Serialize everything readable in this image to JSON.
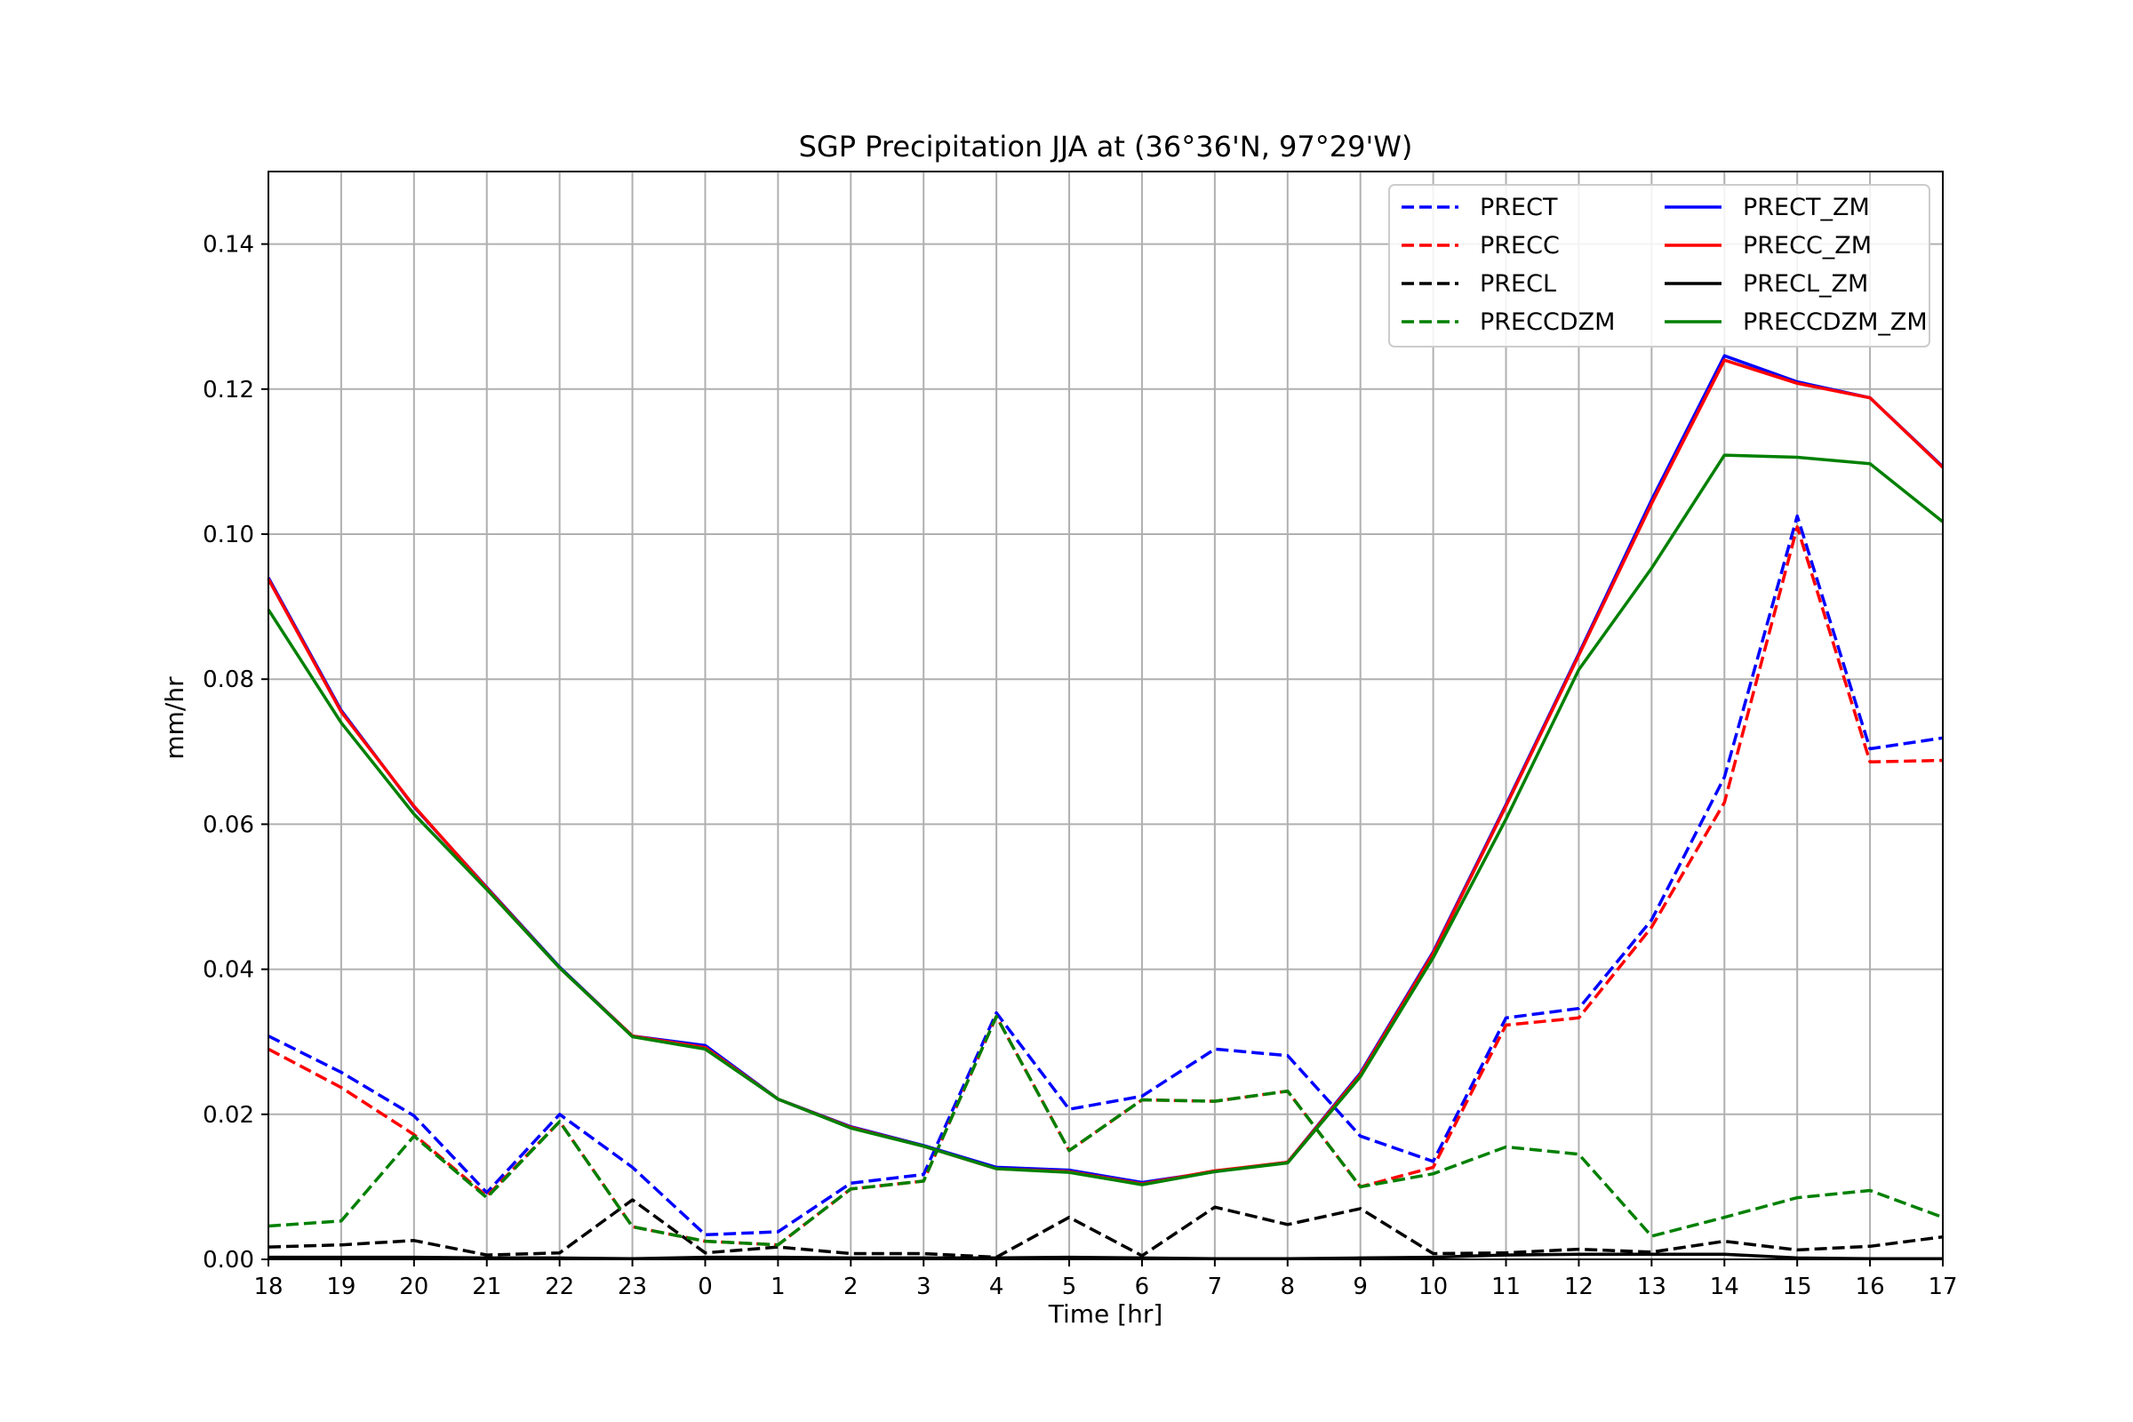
{
  "chart_data": {
    "type": "line",
    "title": "SGP Precipitation JJA at (36°36'N, 97°29'W)",
    "xlabel": "Time [hr]",
    "ylabel": "mm/hr",
    "categories": [
      "18",
      "19",
      "20",
      "21",
      "22",
      "23",
      "0",
      "1",
      "2",
      "3",
      "4",
      "5",
      "6",
      "7",
      "8",
      "9",
      "10",
      "11",
      "12",
      "13",
      "14",
      "15",
      "16",
      "17"
    ],
    "ylim": [
      0,
      0.15
    ],
    "yticks": [
      "0.00",
      "0.02",
      "0.04",
      "0.06",
      "0.08",
      "0.10",
      "0.12",
      "0.14"
    ],
    "grid": true,
    "legend_position": "top-right",
    "series": [
      {
        "name": "PRECT",
        "color": "#0000ff",
        "style": "dashed",
        "values": [
          0.0308,
          0.0258,
          0.0198,
          0.0092,
          0.02,
          0.0127,
          0.0034,
          0.0038,
          0.0105,
          0.0117,
          0.034,
          0.0207,
          0.0225,
          0.029,
          0.0281,
          0.017,
          0.0135,
          0.0333,
          0.0346,
          0.0468,
          0.0665,
          0.1025,
          0.0704,
          0.0719
        ]
      },
      {
        "name": "PRECC",
        "color": "#ff0000",
        "style": "dashed",
        "values": [
          0.029,
          0.0237,
          0.0172,
          0.0087,
          0.019,
          0.0045,
          0.0025,
          0.002,
          0.0097,
          0.0108,
          0.0335,
          0.015,
          0.022,
          0.0218,
          0.0232,
          0.01,
          0.0127,
          0.0323,
          0.0333,
          0.0458,
          0.063,
          0.101,
          0.0686,
          0.0688
        ]
      },
      {
        "name": "PRECL",
        "color": "#000000",
        "style": "dashed",
        "values": [
          0.0017,
          0.002,
          0.0026,
          0.0006,
          0.0009,
          0.0082,
          0.0009,
          0.0017,
          0.0008,
          0.0008,
          0.0003,
          0.0058,
          0.0005,
          0.0072,
          0.0048,
          0.007,
          0.0008,
          0.0009,
          0.0014,
          0.001,
          0.0025,
          0.0013,
          0.0018,
          0.0031
        ]
      },
      {
        "name": "PRECCDZM",
        "color": "#008000",
        "style": "dashed",
        "values": [
          0.0046,
          0.0053,
          0.017,
          0.0085,
          0.019,
          0.0045,
          0.0025,
          0.002,
          0.0097,
          0.0108,
          0.0335,
          0.015,
          0.022,
          0.0218,
          0.0232,
          0.01,
          0.0118,
          0.0155,
          0.0145,
          0.0032,
          0.0058,
          0.0085,
          0.0095,
          0.0058
        ]
      },
      {
        "name": "PRECT_ZM",
        "color": "#0000ff",
        "style": "solid",
        "values": [
          0.094,
          0.0757,
          0.0624,
          0.0513,
          0.0403,
          0.0308,
          0.0295,
          0.0221,
          0.0183,
          0.0157,
          0.0127,
          0.0123,
          0.0106,
          0.0121,
          0.0134,
          0.0257,
          0.0424,
          0.0627,
          0.0835,
          0.1047,
          0.1246,
          0.121,
          0.1188,
          0.1093
        ]
      },
      {
        "name": "PRECC_ZM",
        "color": "#ff0000",
        "style": "solid",
        "values": [
          0.0938,
          0.0755,
          0.0625,
          0.0512,
          0.0402,
          0.0308,
          0.0292,
          0.0221,
          0.0182,
          0.0156,
          0.0125,
          0.0121,
          0.0104,
          0.0122,
          0.0134,
          0.0255,
          0.0422,
          0.0625,
          0.0833,
          0.1042,
          0.124,
          0.1208,
          0.1188,
          0.1092
        ]
      },
      {
        "name": "PRECL_ZM",
        "color": "#000000",
        "style": "solid",
        "values": [
          0.0003,
          0.0003,
          0.0003,
          0.0002,
          0.0002,
          0.0001,
          0.0003,
          0.0003,
          0.0002,
          0.0002,
          0.0002,
          0.0003,
          0.0002,
          0.0001,
          0.0001,
          0.0002,
          0.0003,
          0.0006,
          0.0007,
          0.0007,
          0.0007,
          0.0002,
          0.0001,
          0.0001
        ]
      },
      {
        "name": "PRECCDZM_ZM",
        "color": "#008000",
        "style": "solid",
        "values": [
          0.0896,
          0.074,
          0.0614,
          0.051,
          0.0402,
          0.0307,
          0.029,
          0.0221,
          0.0181,
          0.0156,
          0.0125,
          0.012,
          0.0103,
          0.0121,
          0.0133,
          0.0252,
          0.0416,
          0.0607,
          0.0813,
          0.0953,
          0.1109,
          0.1106,
          0.1097,
          0.1017
        ]
      }
    ]
  }
}
